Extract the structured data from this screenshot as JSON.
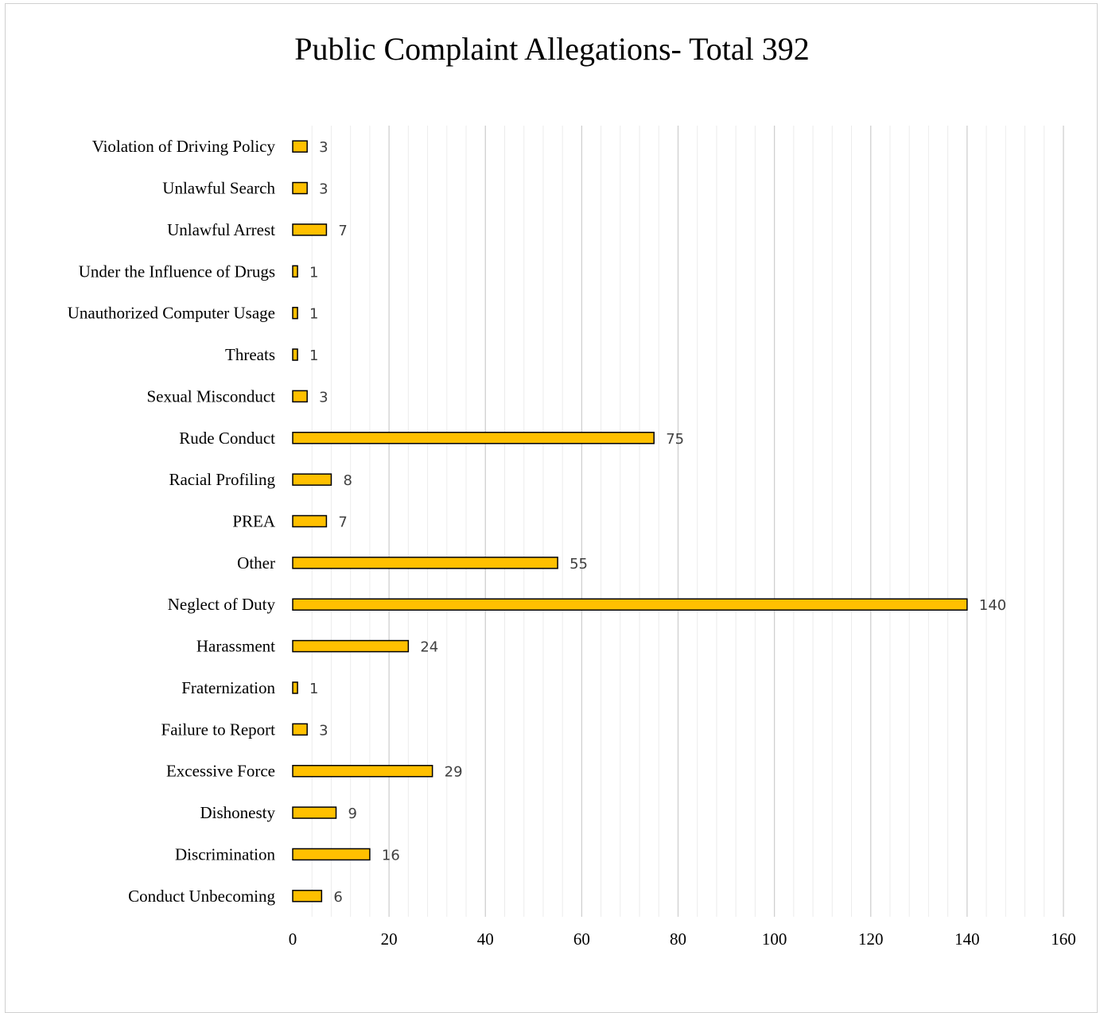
{
  "chart_data": {
    "type": "bar",
    "orientation": "horizontal",
    "title": "Public Complaint Allegations- Total 392",
    "categories": [
      "Violation of Driving Policy",
      "Unlawful Search",
      "Unlawful Arrest",
      "Under the Influence of Drugs",
      "Unauthorized Computer Usage",
      "Threats",
      "Sexual Misconduct",
      "Rude Conduct",
      "Racial Profiling",
      "PREA",
      "Other",
      "Neglect of Duty",
      "Harassment",
      "Fraternization",
      "Failure to Report",
      "Excessive Force",
      "Dishonesty",
      "Discrimination",
      "Conduct Unbecoming"
    ],
    "values": [
      3,
      3,
      7,
      1,
      1,
      1,
      3,
      75,
      8,
      7,
      55,
      140,
      24,
      1,
      3,
      29,
      9,
      16,
      6
    ],
    "xlim": [
      0,
      160
    ],
    "xticks": [
      0,
      20,
      40,
      60,
      80,
      100,
      120,
      140,
      160
    ],
    "grid": true,
    "data_labels": true,
    "bar_color": "#FFC000",
    "bar_edge_color": "#000000",
    "grid_color": "#d9d9d9"
  }
}
